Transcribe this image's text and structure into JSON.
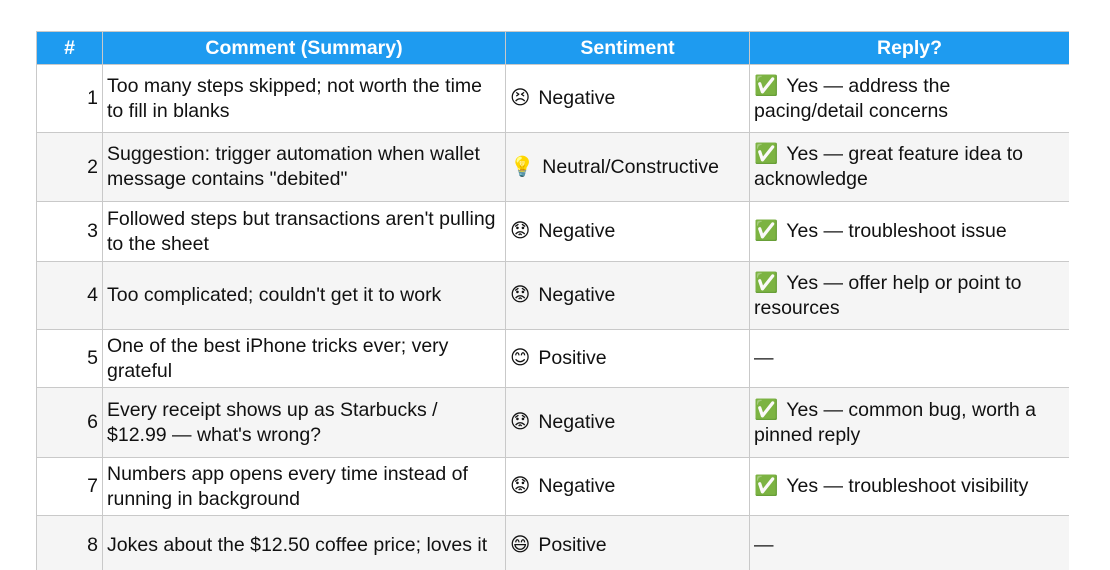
{
  "table": {
    "header": [
      "#",
      "Comment (Summary)",
      "Sentiment",
      "Reply?"
    ],
    "rows": [
      {
        "number": "1",
        "comment": "Too many steps skipped; not worth the time to fill in blanks",
        "sentiment_icon": "😣",
        "sentiment": "Negative",
        "reply_icon": "✅",
        "reply": "Yes — address the pacing/detail concerns"
      },
      {
        "number": "2",
        "comment": "Suggestion: trigger automation when wallet message contains \"debited\"",
        "sentiment_icon": "💡",
        "sentiment": "Neutral/Constructive",
        "reply_icon": "✅",
        "reply": "Yes — great feature idea to acknowledge"
      },
      {
        "number": "3",
        "comment": "Followed steps but transactions aren't pulling to the sheet",
        "sentiment_icon": "😟",
        "sentiment": "Negative",
        "reply_icon": "✅",
        "reply": "Yes — troubleshoot issue"
      },
      {
        "number": "4",
        "comment": "Too complicated; couldn't get it to work",
        "sentiment_icon": "😟",
        "sentiment": "Negative",
        "reply_icon": "✅",
        "reply": "Yes — offer help or point to resources"
      },
      {
        "number": "5",
        "comment": "One of the best iPhone tricks ever; very grateful",
        "sentiment_icon": "😊",
        "sentiment": "Positive",
        "reply_icon": null,
        "reply": "—"
      },
      {
        "number": "6",
        "comment": "Every receipt shows up as Starbucks / $12.99 — what's wrong?",
        "sentiment_icon": "😟",
        "sentiment": "Negative",
        "reply_icon": "✅",
        "reply": "Yes — common bug, worth a pinned reply"
      },
      {
        "number": "7",
        "comment": "Numbers app opens every time instead of running in background",
        "sentiment_icon": "😟",
        "sentiment": "Negative",
        "reply_icon": "✅",
        "reply": "Yes — troubleshoot visibility"
      },
      {
        "number": "8",
        "comment": "Jokes about the $12.50 coffee price; loves it",
        "sentiment_icon": "😄",
        "sentiment": "Positive",
        "reply_icon": null,
        "reply": "—"
      }
    ]
  }
}
